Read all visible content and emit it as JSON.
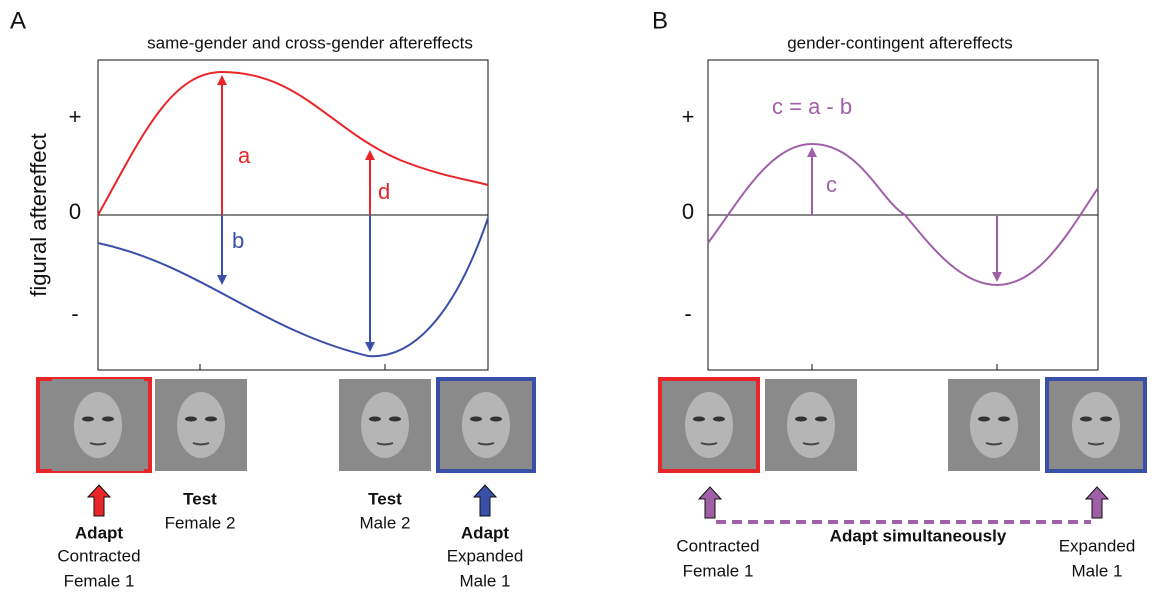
{
  "panel_a": {
    "label": "A",
    "title": "same-gender and cross-gender aftereffects",
    "y_label": "figural aftereffect",
    "y_ticks": [
      "+",
      "0",
      "-"
    ],
    "arrow_labels": [
      "a",
      "b",
      "d"
    ],
    "captions": [
      {
        "bold": "Adapt",
        "lines": [
          "Contracted",
          "Female 1"
        ]
      },
      {
        "bold": "Test",
        "lines": [
          "Female 2"
        ]
      },
      {
        "bold": "Test",
        "lines": [
          "Male 2"
        ]
      },
      {
        "bold": "Adapt",
        "lines": [
          "Expanded",
          "Male 1"
        ]
      }
    ]
  },
  "panel_b": {
    "label": "B",
    "title": "gender-contingent aftereffects",
    "y_ticks": [
      "+",
      "0",
      "-"
    ],
    "equation": "c = a - b",
    "arrow_label": "c",
    "middle_caption": "Adapt simultaneously",
    "captions": [
      {
        "lines": [
          "Contracted",
          "Female 1"
        ]
      },
      {
        "lines": [
          "Expanded",
          "Male 1"
        ]
      }
    ]
  }
}
